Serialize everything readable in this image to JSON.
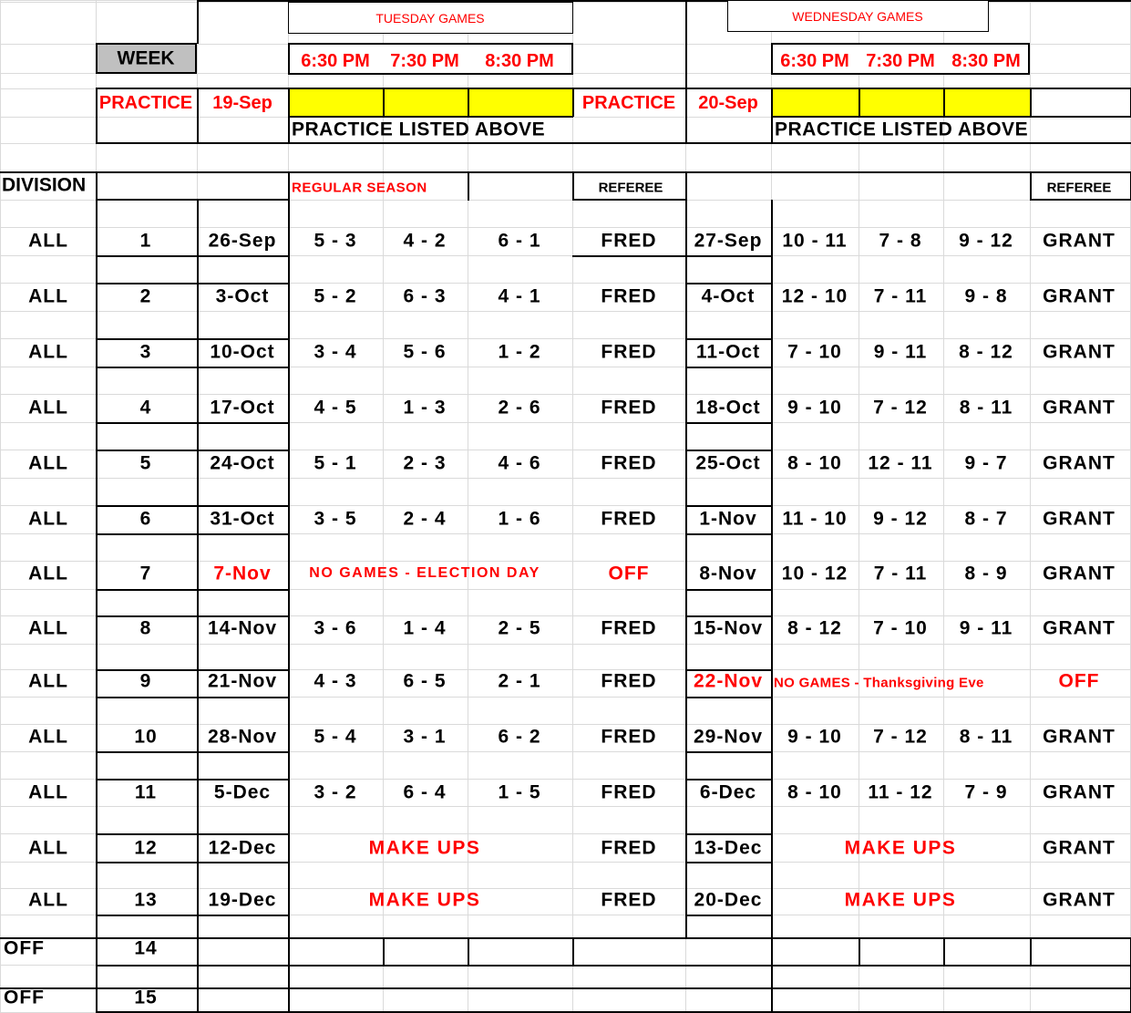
{
  "header": {
    "tuesday_title": "TUESDAY GAMES",
    "wednesday_title": "WEDNESDAY GAMES",
    "week_label": "WEEK",
    "tuesday_times": [
      "6:30 PM",
      "7:30 PM",
      "8:30 PM"
    ],
    "wednesday_times": [
      "6:30 PM",
      "7:30 PM",
      "8:30 PM"
    ],
    "practice_label": "PRACTICE",
    "tuesday_practice_date": "19-Sep",
    "wednesday_practice_date": "20-Sep",
    "practice_note": "PRACTICE LISTED ABOVE",
    "division_label": "DIVISION",
    "regular_season_label": "REGULAR SEASON",
    "referee_label": "REFEREE"
  },
  "colors": {
    "highlight": "#ffff00",
    "accent": "#ff0000",
    "week_box": "#c0c0c0"
  },
  "schedule": [
    {
      "division": "ALL",
      "week": "1",
      "tue_date": "26-Sep",
      "tue_games": [
        "5 - 3",
        "4 - 2",
        "6 - 1"
      ],
      "tue_ref": "FRED",
      "wed_date": "27-Sep",
      "wed_games": [
        "10 - 11",
        "7 - 8",
        "9 - 12"
      ],
      "wed_ref": "GRANT"
    },
    {
      "division": "ALL",
      "week": "2",
      "tue_date": "3-Oct",
      "tue_games": [
        "5 - 2",
        "6 - 3",
        "4 - 1"
      ],
      "tue_ref": "FRED",
      "wed_date": "4-Oct",
      "wed_games": [
        "12 - 10",
        "7 - 11",
        "9 - 8"
      ],
      "wed_ref": "GRANT"
    },
    {
      "division": "ALL",
      "week": "3",
      "tue_date": "10-Oct",
      "tue_games": [
        "3 - 4",
        "5 - 6",
        "1 - 2"
      ],
      "tue_ref": "FRED",
      "wed_date": "11-Oct",
      "wed_games": [
        "7 - 10",
        "9 - 11",
        "8 - 12"
      ],
      "wed_ref": "GRANT"
    },
    {
      "division": "ALL",
      "week": "4",
      "tue_date": "17-Oct",
      "tue_games": [
        "4 - 5",
        "1 - 3",
        "2 - 6"
      ],
      "tue_ref": "FRED",
      "wed_date": "18-Oct",
      "wed_games": [
        "9 - 10",
        "7 - 12",
        "8 - 11"
      ],
      "wed_ref": "GRANT"
    },
    {
      "division": "ALL",
      "week": "5",
      "tue_date": "24-Oct",
      "tue_games": [
        "5 - 1",
        "2 - 3",
        "4 - 6"
      ],
      "tue_ref": "FRED",
      "wed_date": "25-Oct",
      "wed_games": [
        "8 - 10",
        "12 - 11",
        "9 - 7"
      ],
      "wed_ref": "GRANT"
    },
    {
      "division": "ALL",
      "week": "6",
      "tue_date": "31-Oct",
      "tue_games": [
        "3 - 5",
        "2 - 4",
        "1 - 6"
      ],
      "tue_ref": "FRED",
      "wed_date": "1-Nov",
      "wed_games": [
        "11 - 10",
        "9 - 12",
        "8 - 7"
      ],
      "wed_ref": "GRANT"
    },
    {
      "division": "ALL",
      "week": "7",
      "tue_date": "7-Nov",
      "tue_note": "NO GAMES - ELECTION DAY",
      "tue_ref": "OFF",
      "wed_date": "8-Nov",
      "wed_games": [
        "10 - 12",
        "7 - 11",
        "8 - 9"
      ],
      "wed_ref": "GRANT"
    },
    {
      "division": "ALL",
      "week": "8",
      "tue_date": "14-Nov",
      "tue_games": [
        "3 - 6",
        "1 - 4",
        "2 - 5"
      ],
      "tue_ref": "FRED",
      "wed_date": "15-Nov",
      "wed_games": [
        "8 - 12",
        "7 - 10",
        "9 - 11"
      ],
      "wed_ref": "GRANT"
    },
    {
      "division": "ALL",
      "week": "9",
      "tue_date": "21-Nov",
      "tue_games": [
        "4 - 3",
        "6 - 5",
        "2 - 1"
      ],
      "tue_ref": "FRED",
      "wed_date": "22-Nov",
      "wed_note": "NO GAMES - Thanksgiving Eve",
      "wed_ref": "OFF"
    },
    {
      "division": "ALL",
      "week": "10",
      "tue_date": "28-Nov",
      "tue_games": [
        "5 - 4",
        "3 - 1",
        "6 - 2"
      ],
      "tue_ref": "FRED",
      "wed_date": "29-Nov",
      "wed_games": [
        "9 - 10",
        "7 - 12",
        "8 - 11"
      ],
      "wed_ref": "GRANT"
    },
    {
      "division": "ALL",
      "week": "11",
      "tue_date": "5-Dec",
      "tue_games": [
        "3 - 2",
        "6 - 4",
        "1 - 5"
      ],
      "tue_ref": "FRED",
      "wed_date": "6-Dec",
      "wed_games": [
        "8 - 10",
        "11 - 12",
        "7 - 9"
      ],
      "wed_ref": "GRANT"
    },
    {
      "division": "ALL",
      "week": "12",
      "tue_date": "12-Dec",
      "tue_note": "MAKE UPS",
      "tue_ref": "FRED",
      "wed_date": "13-Dec",
      "wed_note": "MAKE UPS",
      "wed_ref": "GRANT"
    },
    {
      "division": "ALL",
      "week": "13",
      "tue_date": "19-Dec",
      "tue_note": "MAKE UPS",
      "tue_ref": "FRED",
      "wed_date": "20-Dec",
      "wed_note": "MAKE UPS",
      "wed_ref": "GRANT"
    },
    {
      "division": "OFF",
      "week": "14"
    },
    {
      "division": "OFF",
      "week": "15"
    }
  ]
}
